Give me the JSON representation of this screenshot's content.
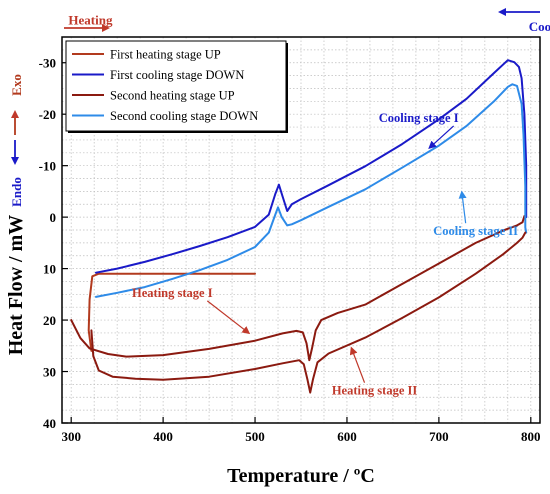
{
  "chart_data": {
    "type": "line",
    "xlabel": "Temperature / ºC",
    "ylabel": "Heat Flow / mW",
    "xlim": [
      290,
      810
    ],
    "ylim": [
      40,
      -35
    ],
    "y_inverted": true,
    "xticks": [
      300,
      400,
      500,
      600,
      700,
      800
    ],
    "yticks": [
      -30,
      -20,
      -10,
      0,
      10,
      20,
      30,
      40
    ],
    "grid": true,
    "legend_position": "top-left",
    "series": [
      {
        "name": "First heating stage UP",
        "color": "#b23a1e",
        "points": [
          [
            322,
            26
          ],
          [
            319,
            22
          ],
          [
            320,
            16
          ],
          [
            323,
            11.5
          ],
          [
            330,
            11
          ],
          [
            360,
            11
          ],
          [
            400,
            11
          ],
          [
            450,
            11
          ],
          [
            500,
            11
          ]
        ]
      },
      {
        "name": "First cooling stage DOWN",
        "color": "#1a1ac8",
        "points": [
          [
            327,
            10.8
          ],
          [
            350,
            10
          ],
          [
            380,
            8.7
          ],
          [
            410,
            7.2
          ],
          [
            440,
            5.6
          ],
          [
            470,
            3.9
          ],
          [
            500,
            1.9
          ],
          [
            515,
            -0.5
          ],
          [
            522,
            -4.5
          ],
          [
            526,
            -6.3
          ],
          [
            530,
            -4
          ],
          [
            535,
            -1.2
          ],
          [
            540,
            -2.5
          ],
          [
            550,
            -3.5
          ],
          [
            580,
            -6.2
          ],
          [
            620,
            -9.9
          ],
          [
            660,
            -14.2
          ],
          [
            700,
            -19
          ],
          [
            730,
            -23
          ],
          [
            760,
            -28
          ],
          [
            775,
            -30.5
          ],
          [
            782,
            -30.1
          ],
          [
            787,
            -29.2
          ],
          [
            790,
            -27
          ],
          [
            793,
            -20
          ],
          [
            795,
            -10
          ],
          [
            795,
            -2
          ],
          [
            795,
            0
          ]
        ]
      },
      {
        "name": "Second heating stage UP",
        "color": "#8b1a10",
        "points": [
          [
            300,
            20
          ],
          [
            310,
            23.5
          ],
          [
            320,
            25.5
          ],
          [
            340,
            26.6
          ],
          [
            360,
            27.1
          ],
          [
            400,
            26.8
          ],
          [
            450,
            25.6
          ],
          [
            500,
            24
          ],
          [
            530,
            22.6
          ],
          [
            545,
            22.1
          ],
          [
            552,
            22.4
          ],
          [
            556,
            24.5
          ],
          [
            559,
            27.8
          ],
          [
            562,
            25.5
          ],
          [
            566,
            22
          ],
          [
            572,
            20
          ],
          [
            590,
            18.6
          ],
          [
            620,
            17
          ],
          [
            660,
            13
          ],
          [
            700,
            9
          ],
          [
            740,
            5
          ],
          [
            770,
            2.6
          ],
          [
            785,
            1.6
          ],
          [
            791,
            1
          ],
          [
            793,
            -0.2
          ]
        ]
      },
      {
        "name": "Second cooling stage DOWN",
        "color": "#2e8be8",
        "points": [
          [
            327,
            15.5
          ],
          [
            350,
            14.7
          ],
          [
            380,
            13.6
          ],
          [
            410,
            12
          ],
          [
            440,
            10.3
          ],
          [
            470,
            8.3
          ],
          [
            500,
            5.8
          ],
          [
            515,
            3
          ],
          [
            522,
            -0.5
          ],
          [
            525,
            -1.9
          ],
          [
            529,
            0
          ],
          [
            535,
            1.6
          ],
          [
            540,
            1.4
          ],
          [
            550,
            0.6
          ],
          [
            580,
            -2
          ],
          [
            620,
            -5.4
          ],
          [
            660,
            -9.6
          ],
          [
            700,
            -13.9
          ],
          [
            730,
            -17.7
          ],
          [
            760,
            -22.5
          ],
          [
            775,
            -25.3
          ],
          [
            780,
            -25.8
          ],
          [
            785,
            -25.5
          ],
          [
            790,
            -22
          ],
          [
            792,
            -16
          ],
          [
            794,
            -6
          ],
          [
            794,
            2
          ],
          [
            795,
            3
          ]
        ]
      },
      {
        "name": "",
        "color": "#8b1a10",
        "points": [
          [
            322,
            22
          ],
          [
            324,
            27
          ],
          [
            330,
            29.8
          ],
          [
            345,
            31
          ],
          [
            370,
            31.4
          ],
          [
            400,
            31.6
          ],
          [
            450,
            31
          ],
          [
            500,
            29.5
          ],
          [
            530,
            28.4
          ],
          [
            548,
            27.8
          ],
          [
            553,
            28.6
          ],
          [
            557,
            31.5
          ],
          [
            560,
            34.1
          ],
          [
            563,
            31.5
          ],
          [
            568,
            28.2
          ],
          [
            580,
            26.5
          ],
          [
            620,
            23.4
          ],
          [
            660,
            19.6
          ],
          [
            700,
            15.6
          ],
          [
            740,
            11
          ],
          [
            770,
            7.2
          ],
          [
            785,
            5
          ],
          [
            791,
            4
          ],
          [
            794,
            3
          ]
        ]
      }
    ],
    "annotations": [
      {
        "text": "Heating",
        "x": 297,
        "y": -37.4,
        "color": "#c0392b"
      },
      {
        "text": "Cooling",
        "x": 800,
        "y": -36.2,
        "color": "#1a1ac8"
      },
      {
        "text": "Exo",
        "color": "#b23a1e"
      },
      {
        "text": "Endo",
        "color": "#1a1ac8"
      },
      {
        "text": "Cooling stage I",
        "x": 678,
        "y": -18.5,
        "color": "#1a1ac8",
        "arrow_to": [
          690,
          -13.5
        ]
      },
      {
        "text": "Cooling stage II",
        "x": 740,
        "y": 3.5,
        "color": "#2e8be8",
        "arrow_to": [
          725,
          -4.8
        ]
      },
      {
        "text": "Heating stage I",
        "x": 410,
        "y": 15.5,
        "color": "#c0392b",
        "arrow_to": [
          493,
          22.5
        ]
      },
      {
        "text": "Heating stage II",
        "x": 630,
        "y": 34.5,
        "color": "#c0392b",
        "arrow_to": [
          605,
          25.5
        ]
      }
    ]
  }
}
